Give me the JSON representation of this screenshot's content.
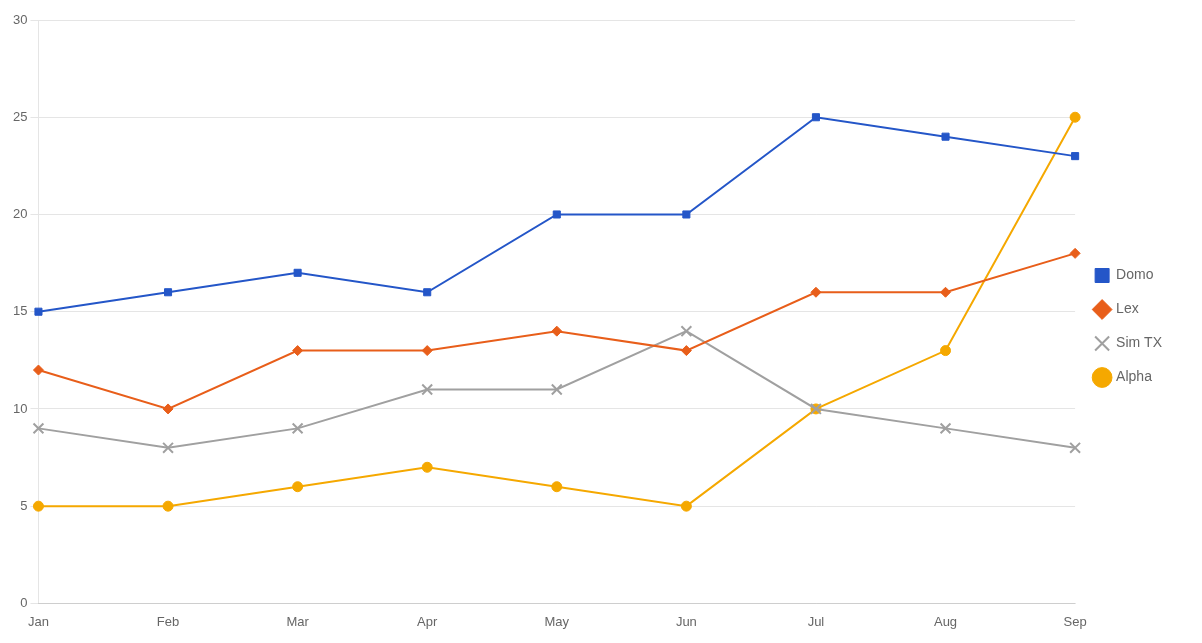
{
  "chart_data": {
    "type": "line",
    "categories": [
      "Jan",
      "Feb",
      "Mar",
      "Apr",
      "May",
      "Jun",
      "Jul",
      "Aug",
      "Sep"
    ],
    "series": [
      {
        "name": "Domo",
        "color": "#2456C8",
        "marker": "square",
        "values": [
          15,
          16,
          17,
          16,
          20,
          20,
          25,
          24,
          23
        ]
      },
      {
        "name": "Lex",
        "color": "#E85E1A",
        "marker": "diamond",
        "values": [
          12,
          10,
          13,
          13,
          14,
          13,
          16,
          16,
          18
        ]
      },
      {
        "name": "Sim TX",
        "color": "#A0A0A0",
        "marker": "x",
        "values": [
          9,
          8,
          9,
          11,
          11,
          14,
          10,
          9,
          8
        ]
      },
      {
        "name": "Alpha",
        "color": "#F5A800",
        "marker": "circle",
        "values": [
          5,
          5,
          6,
          7,
          6,
          5,
          10,
          13,
          25
        ]
      }
    ],
    "ylim": [
      0,
      30
    ],
    "yticks": [
      0,
      5,
      10,
      15,
      20,
      25,
      30
    ],
    "grid": "y",
    "legend": "right"
  }
}
